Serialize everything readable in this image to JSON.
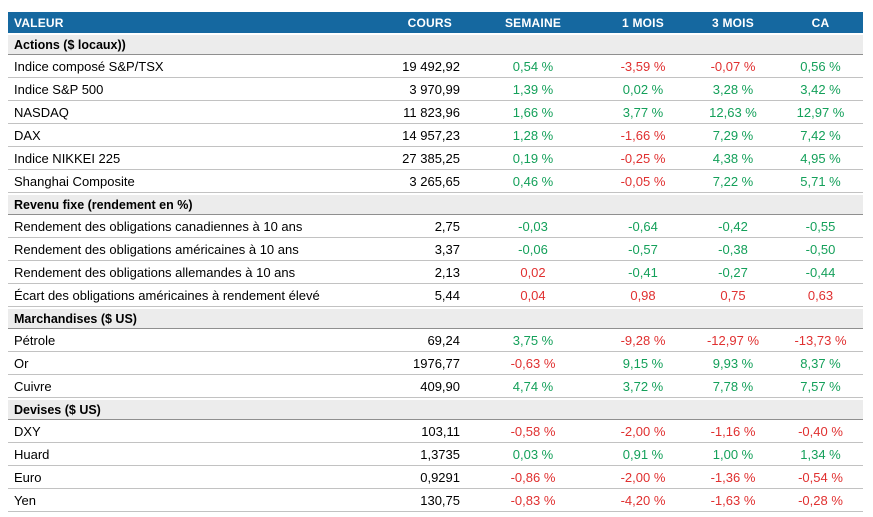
{
  "colors": {
    "header_bg": "#1568a0",
    "section_bg": "#ececec",
    "up": "#14a05a",
    "down": "#e03030"
  },
  "chart_data": {
    "type": "table",
    "columns": [
      "VALEUR",
      "COURS",
      "SEMAINE",
      "1 MOIS",
      "3 MOIS",
      "CA"
    ],
    "sections": [
      {
        "title": "Actions ($ locaux))",
        "rows": [
          {
            "label": "Indice composé S&P/TSX",
            "cours": "19 492,92",
            "changes": [
              {
                "text": "0,54 %",
                "tone": "up"
              },
              {
                "text": "-3,59 %",
                "tone": "down"
              },
              {
                "text": "-0,07 %",
                "tone": "down"
              },
              {
                "text": "0,56 %",
                "tone": "up"
              }
            ]
          },
          {
            "label": "Indice S&P 500",
            "cours": "3 970,99",
            "changes": [
              {
                "text": "1,39 %",
                "tone": "up"
              },
              {
                "text": "0,02 %",
                "tone": "up"
              },
              {
                "text": "3,28 %",
                "tone": "up"
              },
              {
                "text": "3,42 %",
                "tone": "up"
              }
            ]
          },
          {
            "label": "NASDAQ",
            "cours": "11 823,96",
            "changes": [
              {
                "text": "1,66 %",
                "tone": "up"
              },
              {
                "text": "3,77 %",
                "tone": "up"
              },
              {
                "text": "12,63 %",
                "tone": "up"
              },
              {
                "text": "12,97 %",
                "tone": "up"
              }
            ]
          },
          {
            "label": "DAX",
            "cours": "14 957,23",
            "changes": [
              {
                "text": "1,28 %",
                "tone": "up"
              },
              {
                "text": "-1,66 %",
                "tone": "down"
              },
              {
                "text": "7,29 %",
                "tone": "up"
              },
              {
                "text": "7,42 %",
                "tone": "up"
              }
            ]
          },
          {
            "label": "Indice NIKKEI 225",
            "cours": "27 385,25",
            "changes": [
              {
                "text": "0,19 %",
                "tone": "up"
              },
              {
                "text": "-0,25 %",
                "tone": "down"
              },
              {
                "text": "4,38 %",
                "tone": "up"
              },
              {
                "text": "4,95 %",
                "tone": "up"
              }
            ]
          },
          {
            "label": "Shanghai Composite",
            "cours": "3 265,65",
            "changes": [
              {
                "text": "0,46 %",
                "tone": "up"
              },
              {
                "text": "-0,05 %",
                "tone": "down"
              },
              {
                "text": "7,22 %",
                "tone": "up"
              },
              {
                "text": "5,71 %",
                "tone": "up"
              }
            ]
          }
        ]
      },
      {
        "title": "Revenu fixe (rendement en %)",
        "rows": [
          {
            "label": "Rendement des obligations canadiennes à 10 ans",
            "cours": "2,75",
            "changes": [
              {
                "text": "-0,03",
                "tone": "up"
              },
              {
                "text": "-0,64",
                "tone": "up"
              },
              {
                "text": "-0,42",
                "tone": "up"
              },
              {
                "text": "-0,55",
                "tone": "up"
              }
            ]
          },
          {
            "label": "Rendement des obligations américaines à 10 ans",
            "cours": "3,37",
            "changes": [
              {
                "text": "-0,06",
                "tone": "up"
              },
              {
                "text": "-0,57",
                "tone": "up"
              },
              {
                "text": "-0,38",
                "tone": "up"
              },
              {
                "text": "-0,50",
                "tone": "up"
              }
            ]
          },
          {
            "label": "Rendement des obligations allemandes à 10 ans",
            "cours": "2,13",
            "changes": [
              {
                "text": "0,02",
                "tone": "down"
              },
              {
                "text": "-0,41",
                "tone": "up"
              },
              {
                "text": "-0,27",
                "tone": "up"
              },
              {
                "text": "-0,44",
                "tone": "up"
              }
            ]
          },
          {
            "label": "Écart des obligations américaines à rendement élevé",
            "cours": "5,44",
            "changes": [
              {
                "text": "0,04",
                "tone": "down"
              },
              {
                "text": "0,98",
                "tone": "down"
              },
              {
                "text": "0,75",
                "tone": "down"
              },
              {
                "text": "0,63",
                "tone": "down"
              }
            ]
          }
        ]
      },
      {
        "title": "Marchandises ($ US)",
        "rows": [
          {
            "label": "Pétrole",
            "cours": "69,24",
            "changes": [
              {
                "text": "3,75 %",
                "tone": "up"
              },
              {
                "text": "-9,28 %",
                "tone": "down"
              },
              {
                "text": "-12,97 %",
                "tone": "down"
              },
              {
                "text": "-13,73 %",
                "tone": "down"
              }
            ]
          },
          {
            "label": "Or",
            "cours": "1976,77",
            "changes": [
              {
                "text": "-0,63 %",
                "tone": "down"
              },
              {
                "text": "9,15 %",
                "tone": "up"
              },
              {
                "text": "9,93 %",
                "tone": "up"
              },
              {
                "text": "8,37 %",
                "tone": "up"
              }
            ]
          },
          {
            "label": "Cuivre",
            "cours": "409,90",
            "changes": [
              {
                "text": "4,74 %",
                "tone": "up"
              },
              {
                "text": "3,72 %",
                "tone": "up"
              },
              {
                "text": "7,78 %",
                "tone": "up"
              },
              {
                "text": "7,57 %",
                "tone": "up"
              }
            ]
          }
        ]
      },
      {
        "title": "Devises ($ US)",
        "rows": [
          {
            "label": "DXY",
            "cours": "103,11",
            "changes": [
              {
                "text": "-0,58 %",
                "tone": "down"
              },
              {
                "text": "-2,00 %",
                "tone": "down"
              },
              {
                "text": "-1,16 %",
                "tone": "down"
              },
              {
                "text": "-0,40 %",
                "tone": "down"
              }
            ]
          },
          {
            "label": "Huard",
            "cours": "1,3735",
            "changes": [
              {
                "text": "0,03 %",
                "tone": "up"
              },
              {
                "text": "0,91 %",
                "tone": "up"
              },
              {
                "text": "1,00 %",
                "tone": "up"
              },
              {
                "text": "1,34 %",
                "tone": "up"
              }
            ]
          },
          {
            "label": "Euro",
            "cours": "0,9291",
            "changes": [
              {
                "text": "-0,86 %",
                "tone": "down"
              },
              {
                "text": "-2,00 %",
                "tone": "down"
              },
              {
                "text": "-1,36 %",
                "tone": "down"
              },
              {
                "text": "-0,54 %",
                "tone": "down"
              }
            ]
          },
          {
            "label": "Yen",
            "cours": "130,75",
            "changes": [
              {
                "text": "-0,83 %",
                "tone": "down"
              },
              {
                "text": "-4,20 %",
                "tone": "down"
              },
              {
                "text": "-1,63 %",
                "tone": "down"
              },
              {
                "text": "-0,28 %",
                "tone": "down"
              }
            ]
          }
        ]
      }
    ]
  }
}
